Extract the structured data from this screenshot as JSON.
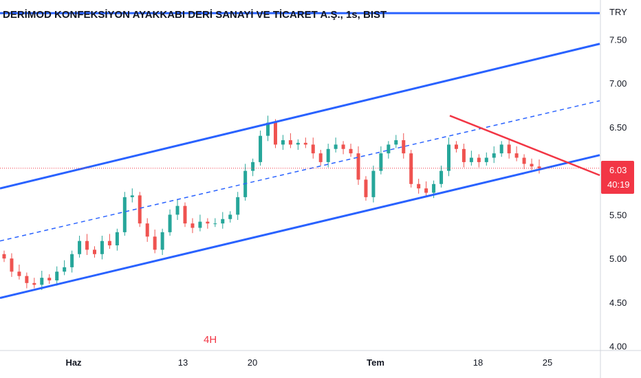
{
  "chart_data": {
    "type": "candlestick",
    "title": "DERİMOD KONFEKSİYON AYAKKABI DERİ SANAYİ VE TİCARET A.Ş., 1s, BIST",
    "currency": "TRY",
    "timeframe_label": "4H",
    "y_axis": {
      "ticks": [
        "7.50",
        "7.00",
        "6.50",
        "6.03",
        "5.50",
        "5.00",
        "4.50",
        "4.00"
      ],
      "range": [
        3.95,
        7.95
      ]
    },
    "x_axis": {
      "ticks": [
        {
          "label": "Haz",
          "bold": true
        },
        {
          "label": "13",
          "bold": false
        },
        {
          "label": "20",
          "bold": false
        },
        {
          "label": "Tem",
          "bold": true
        },
        {
          "label": "18",
          "bold": false
        },
        {
          "label": "25",
          "bold": false
        }
      ]
    },
    "last_price": {
      "value": "6.03",
      "countdown": "40:19"
    },
    "colors": {
      "up": "#26a69a",
      "down": "#ef5350",
      "channel": "#2962ff",
      "triangle": "#f23645",
      "price_line": "#f23645"
    },
    "closes": [
      5.0,
      4.85,
      4.8,
      4.72,
      4.7,
      4.78,
      4.75,
      4.85,
      4.9,
      5.05,
      5.2,
      5.1,
      5.05,
      5.2,
      5.15,
      5.3,
      5.7,
      5.72,
      5.4,
      5.25,
      5.1,
      5.3,
      5.5,
      5.6,
      5.4,
      5.35,
      5.42,
      5.4,
      5.4,
      5.45,
      5.5,
      5.7,
      6.0,
      6.1,
      6.4,
      6.55,
      6.3,
      6.35,
      6.3,
      6.32,
      6.3,
      6.2,
      6.1,
      6.25,
      6.3,
      6.25,
      6.2,
      5.9,
      5.7,
      6.0,
      6.2,
      6.3,
      6.35,
      6.2,
      5.85,
      5.8,
      5.75,
      5.85,
      6.0,
      6.3,
      6.25,
      6.1,
      6.15,
      6.1,
      6.15,
      6.2,
      6.3,
      6.2,
      6.15,
      6.08,
      6.05,
      6.03
    ],
    "channel_top": {
      "p1": [
        "start",
        5.8
      ],
      "p2": [
        "end",
        7.45
      ]
    },
    "channel_bottom": {
      "p1": [
        "start",
        4.55
      ],
      "p2": [
        "end",
        6.18
      ]
    },
    "channel_mid": {
      "p1": [
        "start",
        5.2
      ],
      "p2": [
        "end",
        6.8
      ]
    },
    "horizontal_level": 7.8,
    "triangle_line": {
      "from": 6.63,
      "to": 5.95
    }
  }
}
